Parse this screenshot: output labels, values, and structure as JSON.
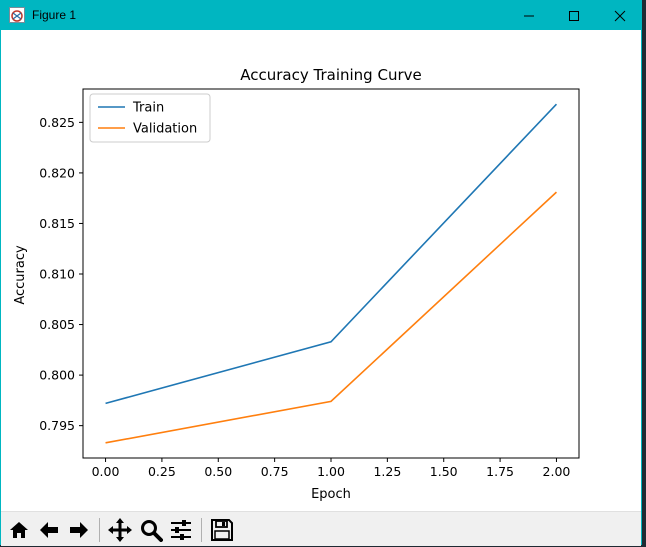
{
  "window": {
    "title": "Figure 1",
    "accent": "#00b6c1"
  },
  "toolbar": {
    "tools": [
      "home-icon",
      "back-icon",
      "forward-icon",
      "pan-icon",
      "zoom-icon",
      "configure-subplots-icon",
      "save-icon"
    ]
  },
  "chart_data": {
    "type": "line",
    "title": "Accuracy Training Curve",
    "xlabel": "Epoch",
    "ylabel": "Accuracy",
    "x": [
      0,
      1,
      2
    ],
    "series": [
      {
        "name": "Train",
        "values": [
          0.7972,
          0.8033,
          0.8268
        ],
        "color": "#1f77b4"
      },
      {
        "name": "Validation",
        "values": [
          0.7933,
          0.7974,
          0.8181
        ],
        "color": "#ff7f0e"
      }
    ],
    "xlim": [
      -0.1,
      2.1
    ],
    "ylim": [
      0.7918,
      0.8283
    ],
    "xticks": [
      0.0,
      0.25,
      0.5,
      0.75,
      1.0,
      1.25,
      1.5,
      1.75,
      2.0
    ],
    "xtick_labels": [
      "0.00",
      "0.25",
      "0.50",
      "0.75",
      "1.00",
      "1.25",
      "1.50",
      "1.75",
      "2.00"
    ],
    "yticks": [
      0.795,
      0.8,
      0.805,
      0.81,
      0.815,
      0.82,
      0.825
    ],
    "ytick_labels": [
      "0.795",
      "0.800",
      "0.805",
      "0.810",
      "0.815",
      "0.820",
      "0.825"
    ],
    "legend_position": "top-left",
    "grid": false
  }
}
